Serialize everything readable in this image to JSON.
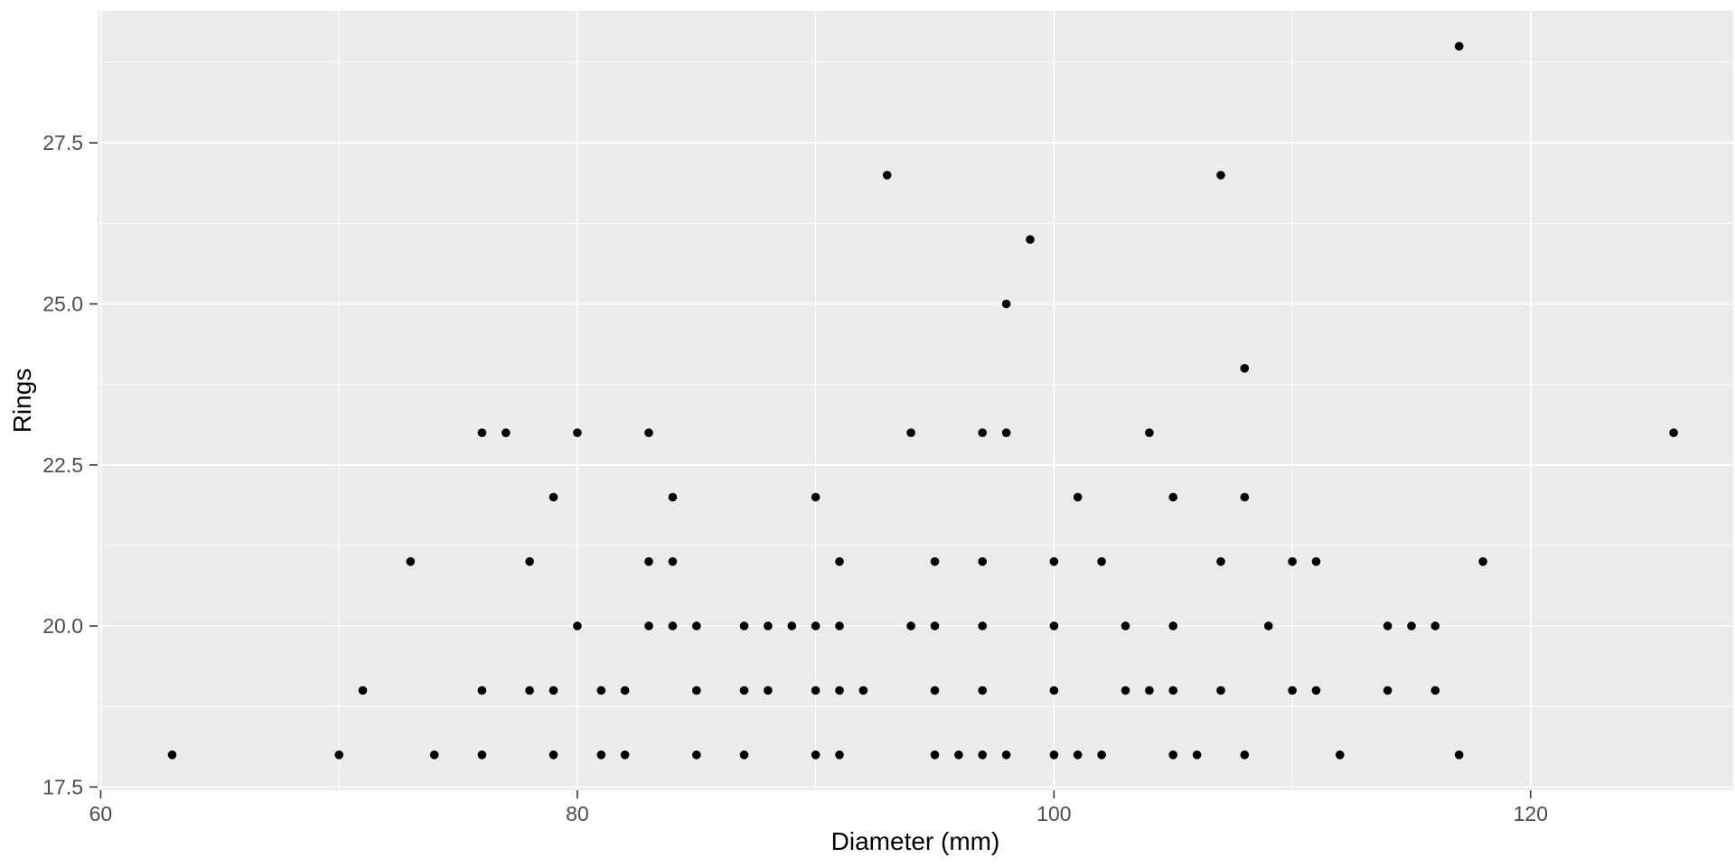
{
  "chart_data": {
    "type": "scatter",
    "title": "",
    "xlabel": "Diameter (mm)",
    "ylabel": "Rings",
    "x_tick_labels": [
      "60",
      "80",
      "100",
      "120"
    ],
    "x_tick_values": [
      60,
      80,
      100,
      120
    ],
    "x_minor_values": [
      70,
      90,
      110,
      130
    ],
    "y_tick_labels": [
      "17.5",
      "20.0",
      "22.5",
      "25.0",
      "27.5"
    ],
    "y_tick_values": [
      17.5,
      20.0,
      22.5,
      25.0,
      27.5
    ],
    "y_minor_values": [
      18.75,
      21.25,
      23.75,
      26.25,
      28.75
    ],
    "xlim": [
      59.87,
      128.5
    ],
    "ylim": [
      17.45,
      29.55
    ],
    "grid": "major-and-minor",
    "legend": "none",
    "points": [
      [
        63,
        18
      ],
      [
        70,
        18
      ],
      [
        74,
        18
      ],
      [
        76,
        18
      ],
      [
        79,
        18
      ],
      [
        81,
        18
      ],
      [
        82,
        18
      ],
      [
        85,
        18
      ],
      [
        87,
        18
      ],
      [
        90,
        18
      ],
      [
        91,
        18
      ],
      [
        95,
        18
      ],
      [
        96,
        18
      ],
      [
        97,
        18
      ],
      [
        98,
        18
      ],
      [
        100,
        18
      ],
      [
        101,
        18
      ],
      [
        102,
        18
      ],
      [
        105,
        18
      ],
      [
        106,
        18
      ],
      [
        108,
        18
      ],
      [
        112,
        18
      ],
      [
        117,
        18
      ],
      [
        71,
        19
      ],
      [
        76,
        19
      ],
      [
        78,
        19
      ],
      [
        79,
        19
      ],
      [
        81,
        19
      ],
      [
        82,
        19
      ],
      [
        85,
        19
      ],
      [
        87,
        19
      ],
      [
        88,
        19
      ],
      [
        90,
        19
      ],
      [
        91,
        19
      ],
      [
        92,
        19
      ],
      [
        95,
        19
      ],
      [
        97,
        19
      ],
      [
        100,
        19
      ],
      [
        103,
        19
      ],
      [
        104,
        19
      ],
      [
        105,
        19
      ],
      [
        107,
        19
      ],
      [
        110,
        19
      ],
      [
        111,
        19
      ],
      [
        114,
        19
      ],
      [
        116,
        19
      ],
      [
        80,
        20
      ],
      [
        83,
        20
      ],
      [
        84,
        20
      ],
      [
        85,
        20
      ],
      [
        87,
        20
      ],
      [
        88,
        20
      ],
      [
        89,
        20
      ],
      [
        90,
        20
      ],
      [
        91,
        20
      ],
      [
        94,
        20
      ],
      [
        95,
        20
      ],
      [
        97,
        20
      ],
      [
        100,
        20
      ],
      [
        103,
        20
      ],
      [
        105,
        20
      ],
      [
        109,
        20
      ],
      [
        114,
        20
      ],
      [
        115,
        20
      ],
      [
        116,
        20
      ],
      [
        73,
        21
      ],
      [
        78,
        21
      ],
      [
        83,
        21
      ],
      [
        84,
        21
      ],
      [
        91,
        21
      ],
      [
        95,
        21
      ],
      [
        97,
        21
      ],
      [
        100,
        21
      ],
      [
        102,
        21
      ],
      [
        107,
        21
      ],
      [
        110,
        21
      ],
      [
        111,
        21
      ],
      [
        118,
        21
      ],
      [
        79,
        22
      ],
      [
        84,
        22
      ],
      [
        90,
        22
      ],
      [
        101,
        22
      ],
      [
        105,
        22
      ],
      [
        108,
        22
      ],
      [
        76,
        23
      ],
      [
        77,
        23
      ],
      [
        80,
        23
      ],
      [
        83,
        23
      ],
      [
        94,
        23
      ],
      [
        97,
        23
      ],
      [
        98,
        23
      ],
      [
        104,
        23
      ],
      [
        126,
        23
      ],
      [
        108,
        24
      ],
      [
        98,
        25
      ],
      [
        99,
        26
      ],
      [
        93,
        27
      ],
      [
        107,
        27
      ],
      [
        117,
        29
      ]
    ]
  },
  "style": {
    "panel_background": "#EBEBEB",
    "grid_color": "#FFFFFF",
    "point_color": "#000000",
    "tick_mark_color": "#333333",
    "tick_label_color": "#4D4D4D",
    "axis_title_color": "#000000"
  }
}
